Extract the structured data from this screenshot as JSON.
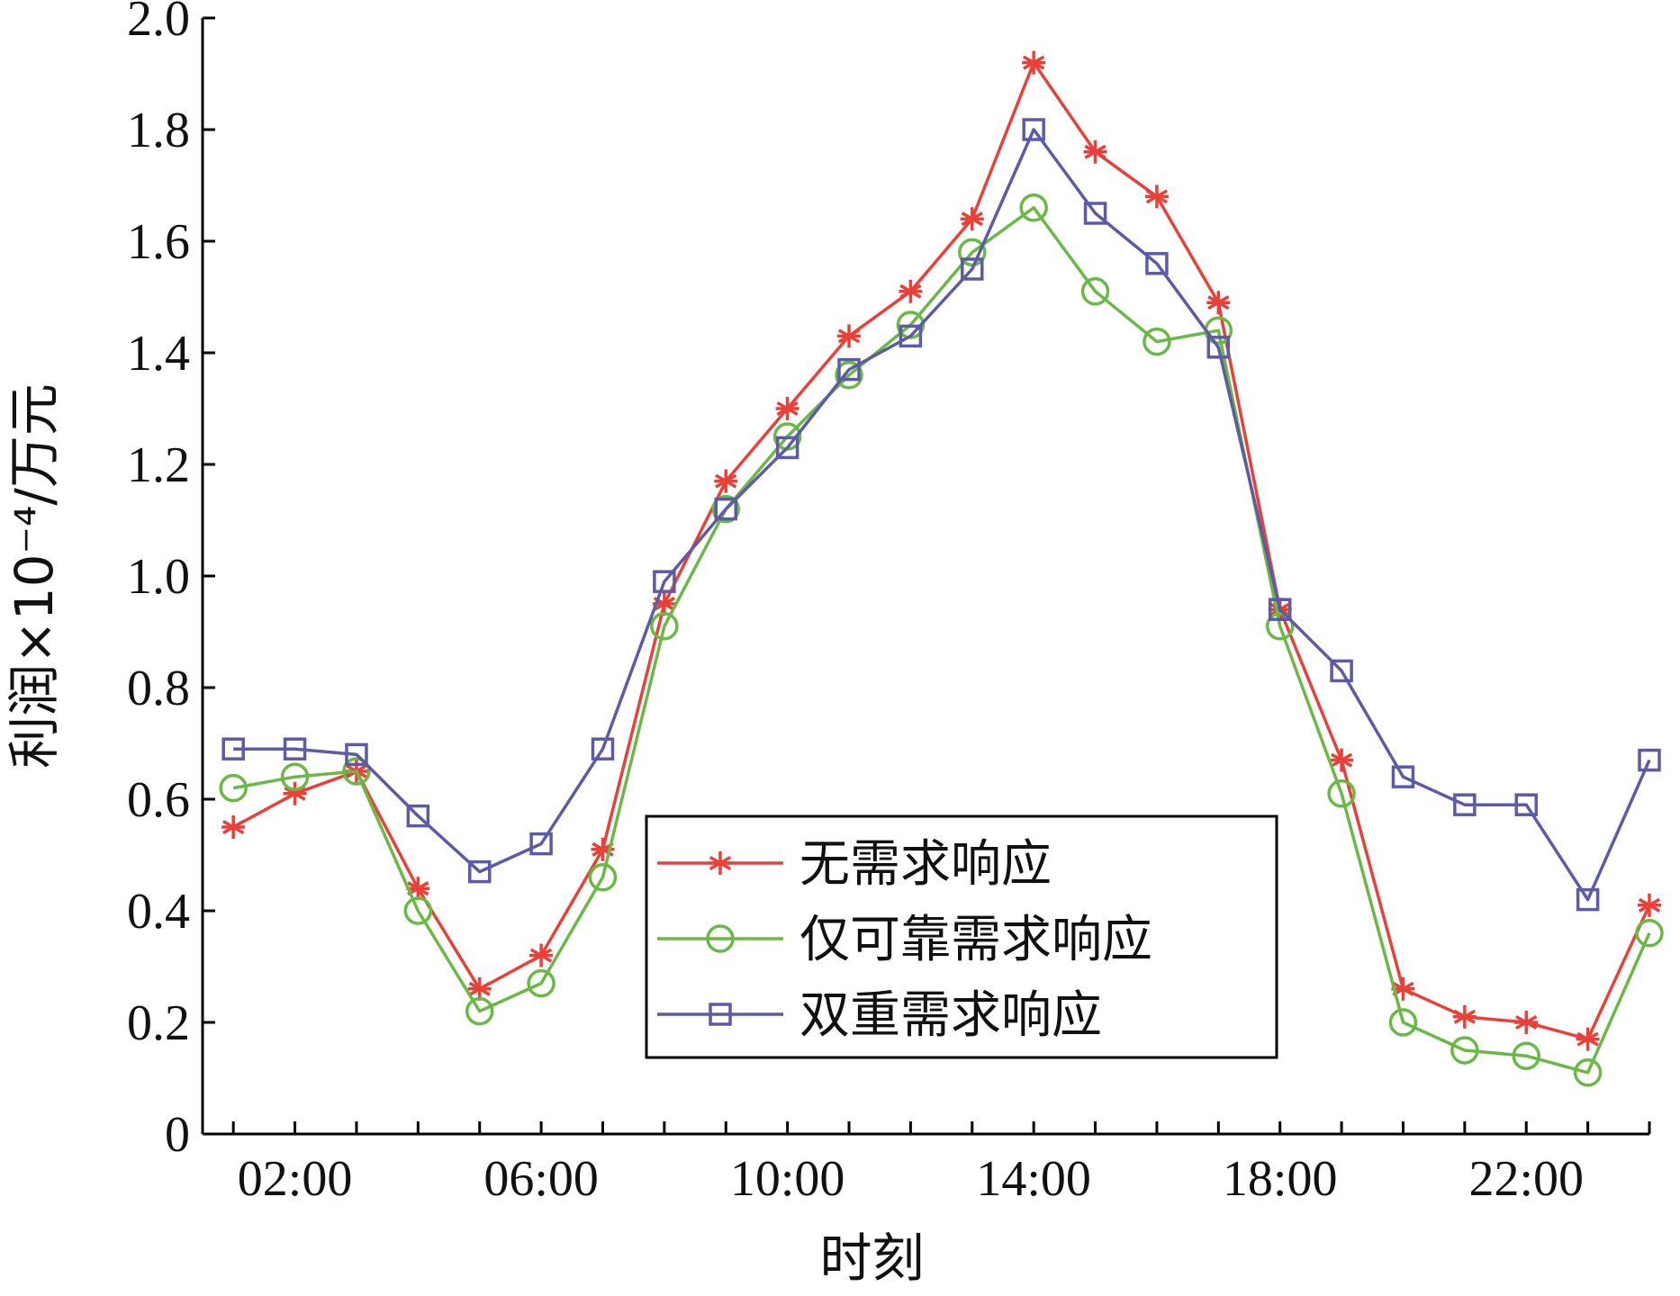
{
  "chart_data": {
    "type": "line",
    "title": "",
    "xlabel": "时刻",
    "ylabel": "利润×10⁻⁴/万元",
    "ylim": [
      0,
      2.0
    ],
    "y_ticks": [
      "0",
      "0.2",
      "0.4",
      "0.6",
      "0.8",
      "1.0",
      "1.2",
      "1.4",
      "1.6",
      "1.8",
      "2.0"
    ],
    "x_tick_labels": [
      "02:00",
      "06:00",
      "10:00",
      "14:00",
      "18:00",
      "22:00"
    ],
    "x_label_hours": [
      2,
      6,
      10,
      14,
      18,
      22
    ],
    "x": [
      1,
      2,
      3,
      4,
      5,
      6,
      7,
      8,
      9,
      10,
      11,
      12,
      13,
      14,
      15,
      16,
      17,
      18,
      19,
      20,
      21,
      22,
      23,
      24
    ],
    "legend_position": "center-right",
    "series": [
      {
        "name": "无需求响应",
        "color": "#e8413a",
        "marker": "asterisk",
        "values": [
          0.55,
          0.61,
          0.65,
          0.44,
          0.26,
          0.32,
          0.51,
          0.95,
          1.17,
          1.3,
          1.43,
          1.51,
          1.64,
          1.92,
          1.76,
          1.68,
          1.49,
          0.94,
          0.67,
          0.26,
          0.21,
          0.2,
          0.17,
          0.41
        ]
      },
      {
        "name": "仅可靠需求响应",
        "color": "#6ab946",
        "marker": "circle",
        "values": [
          0.62,
          0.64,
          0.65,
          0.4,
          0.22,
          0.27,
          0.46,
          0.91,
          1.12,
          1.25,
          1.36,
          1.45,
          1.58,
          1.66,
          1.51,
          1.42,
          1.44,
          0.91,
          0.61,
          0.2,
          0.15,
          0.14,
          0.11,
          0.36
        ]
      },
      {
        "name": "双重需求响应",
        "color": "#5d5aa6",
        "marker": "square",
        "values": [
          0.69,
          0.69,
          0.68,
          0.57,
          0.47,
          0.52,
          0.69,
          0.99,
          1.12,
          1.23,
          1.37,
          1.43,
          1.55,
          1.8,
          1.65,
          1.56,
          1.41,
          0.94,
          0.83,
          0.64,
          0.59,
          0.59,
          0.42,
          0.67
        ]
      }
    ]
  }
}
